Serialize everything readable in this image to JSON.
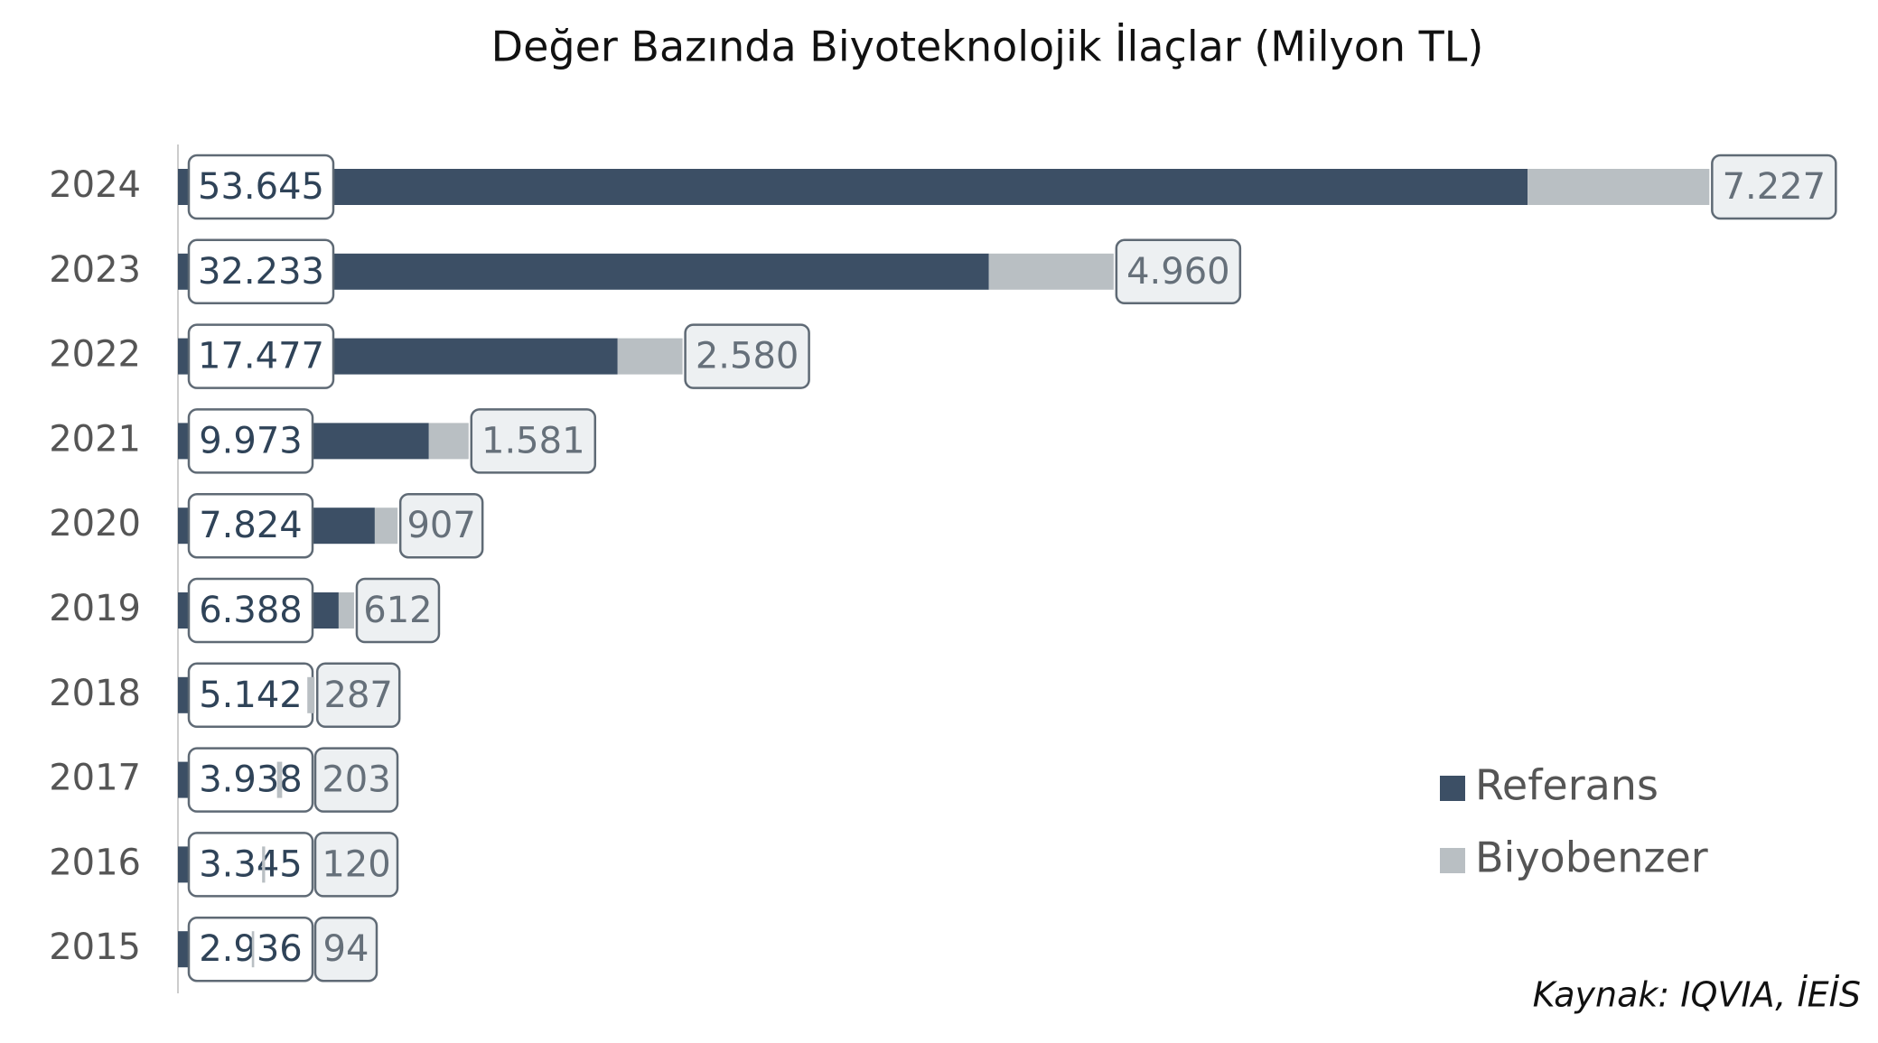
{
  "chart_data": {
    "type": "stacked-bar-horizontal",
    "title": "Değer Bazında Biyoteknolojik İlaçlar (Milyon TL)",
    "source": "Kaynak: IQVIA, İEİS",
    "categories": [
      "2024",
      "2023",
      "2022",
      "2021",
      "2020",
      "2019",
      "2018",
      "2017",
      "2016",
      "2015"
    ],
    "series": [
      {
        "name": "Referans",
        "color": "#3c4f65",
        "values": [
          53645,
          32233,
          17477,
          9973,
          7824,
          6388,
          5142,
          3938,
          3345,
          2936
        ],
        "value_labels": [
          "53.645",
          "32.233",
          "17.477",
          "9.973",
          "7.824",
          "6.388",
          "5.142",
          "3.938",
          "3.345",
          "2.936"
        ]
      },
      {
        "name": "Biyobenzer",
        "color": "#b9bfc3",
        "values": [
          7227,
          4960,
          2580,
          1581,
          907,
          612,
          287,
          203,
          120,
          94
        ],
        "value_labels": [
          "7.227",
          "4.960",
          "2.580",
          "1.581",
          "907",
          "612",
          "287",
          "203",
          "120",
          "94"
        ]
      }
    ],
    "xlim": [
      0,
      67000
    ],
    "legend": "right"
  }
}
